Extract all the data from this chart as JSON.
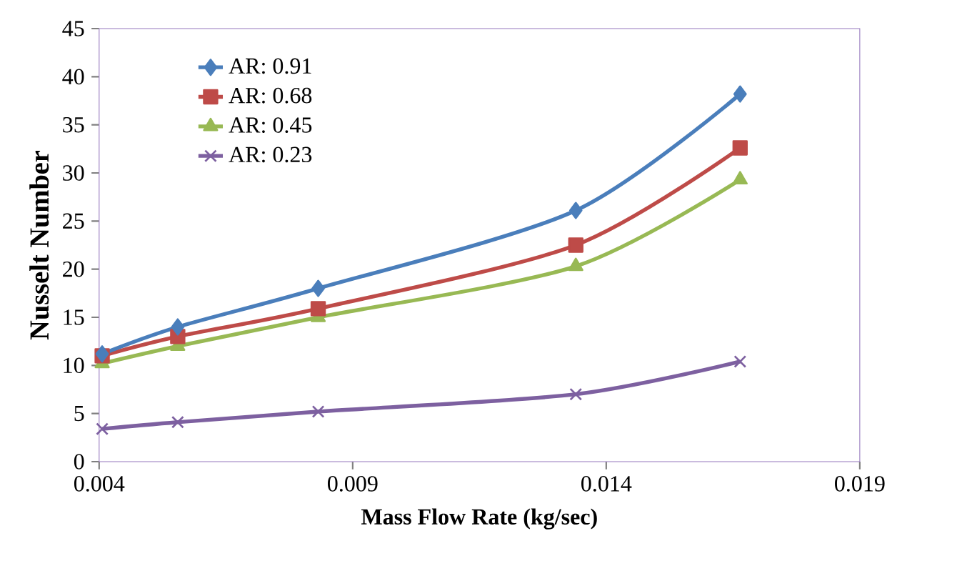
{
  "chart_data": {
    "type": "line",
    "xlabel": "Mass Flow Rate (kg/sec)",
    "ylabel": "Nusselt Number",
    "x": [
      0.00406,
      0.00555,
      0.00832,
      0.0134,
      0.01664
    ],
    "series": [
      {
        "name": "AR: 0.91",
        "color": "#4a7ebb",
        "marker": "diamond",
        "values": [
          11.2,
          14,
          18,
          26.1,
          38.2
        ]
      },
      {
        "name": "AR: 0.68",
        "color": "#be4b48",
        "marker": "square",
        "values": [
          11,
          13,
          15.9,
          22.5,
          32.6
        ]
      },
      {
        "name": "AR: 0.45",
        "color": "#98b954",
        "marker": "triangle",
        "values": [
          10.2,
          12,
          15,
          20.3,
          29.3
        ]
      },
      {
        "name": "AR: 0.23",
        "color": "#7d60a0",
        "marker": "cross",
        "values": [
          3.4,
          4.1,
          5.2,
          7,
          10.4
        ]
      }
    ],
    "xlim": [
      0.004,
      0.019
    ],
    "xticks": [
      0.004,
      0.009,
      0.014,
      0.019
    ],
    "ylim": [
      0,
      45
    ],
    "yticks": [
      0,
      5,
      10,
      15,
      20,
      25,
      30,
      35,
      40,
      45
    ],
    "grid": false,
    "legend": "top left",
    "line_style": "solid"
  }
}
